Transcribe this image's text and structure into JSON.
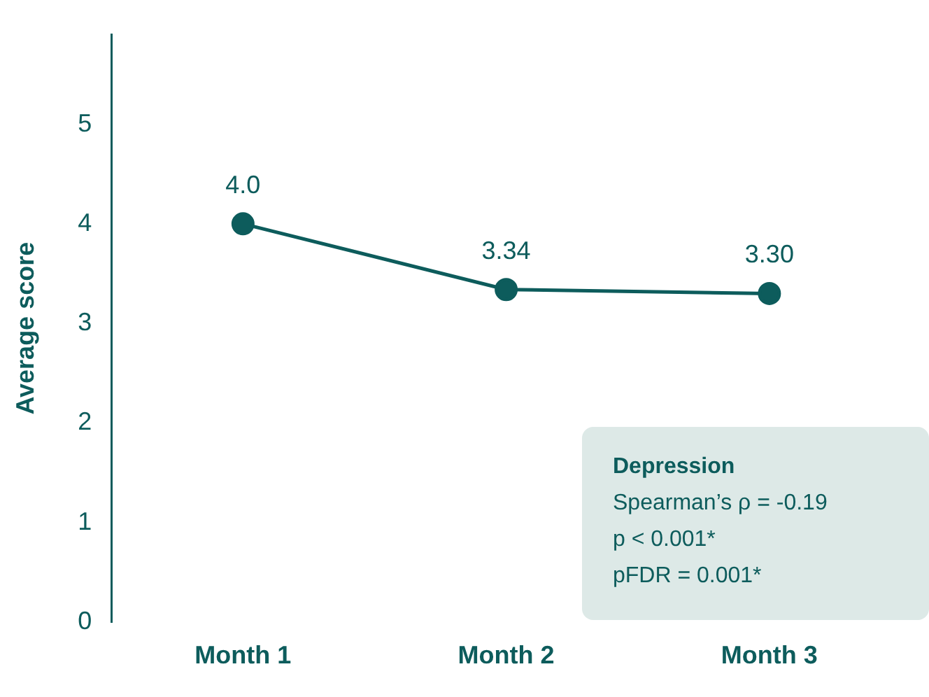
{
  "chart_data": {
    "type": "line",
    "ylabel": "Average score",
    "categories": [
      "Month 1",
      "Month 2",
      "Month 3"
    ],
    "series": [
      {
        "color": "#0d5c5c",
        "values": [
          4.0,
          3.34,
          3.3
        ],
        "value_labels": [
          "4.0",
          "3.34",
          "3.30"
        ]
      }
    ],
    "ylim": [
      0,
      5.9
    ],
    "yticks": [
      0,
      1,
      2,
      3,
      4,
      5
    ],
    "grid": false,
    "legend": false,
    "marker": "circle",
    "line_style": "solid",
    "annotations": [
      "Depression",
      "Spearman’s ρ = -0.19",
      "p < 0.001*",
      "pFDR = 0.001*"
    ]
  }
}
